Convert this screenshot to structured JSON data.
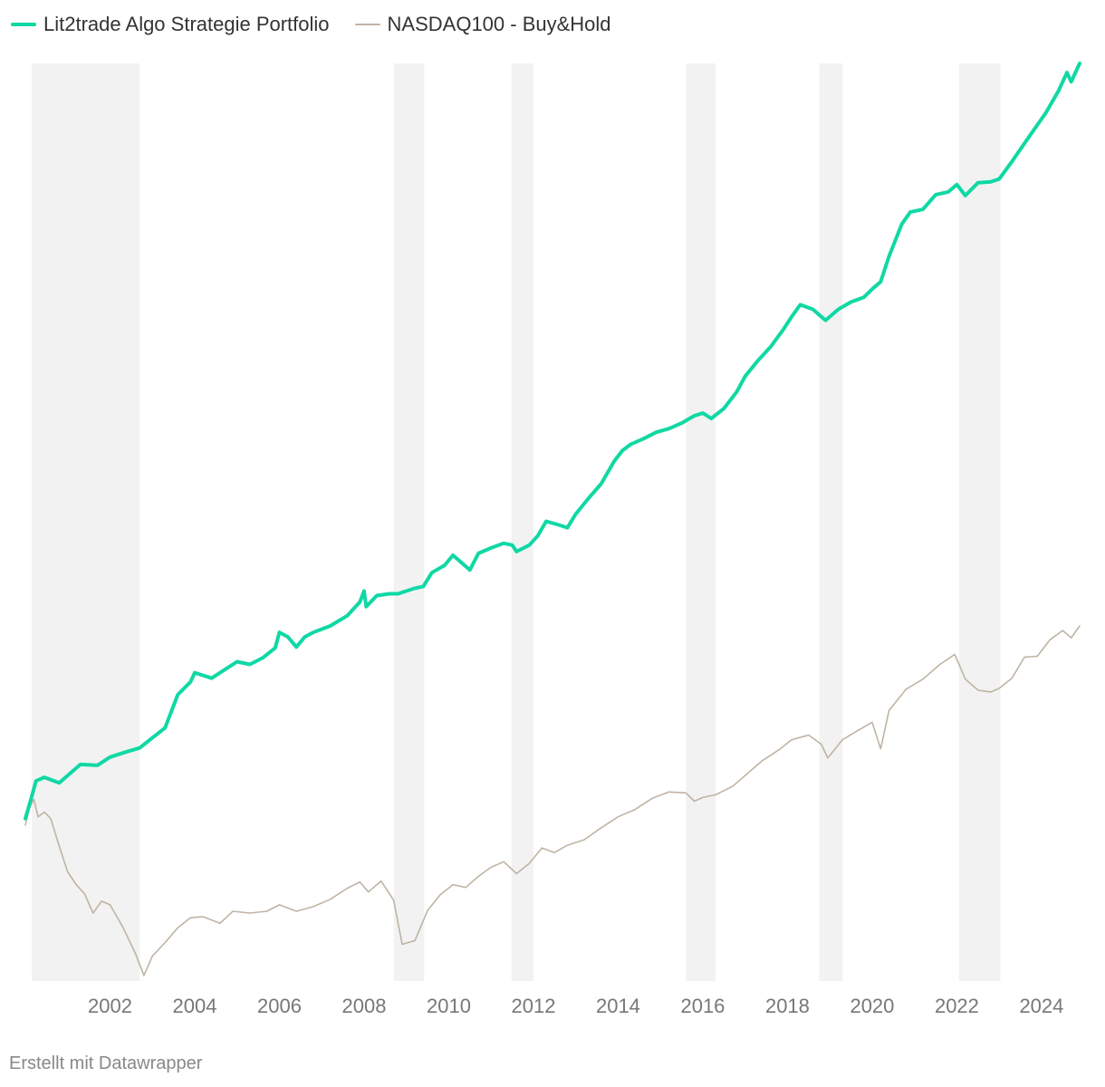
{
  "chart_data": {
    "type": "line",
    "title": "",
    "xlabel": "",
    "ylabel": "",
    "xlim": [
      2000.0,
      2024.9
    ],
    "ylim": [
      0,
      100
    ],
    "y_axis_shown": false,
    "legend_position": "top-left",
    "x_ticks": [
      2002,
      2004,
      2006,
      2008,
      2010,
      2012,
      2014,
      2016,
      2018,
      2020,
      2022,
      2024
    ],
    "x_tick_labels": [
      "2002",
      "2004",
      "2006",
      "2008",
      "2010",
      "2012",
      "2014",
      "2016",
      "2018",
      "2020",
      "2022",
      "2024"
    ],
    "shaded_periods": [
      {
        "start": 2000.15,
        "end": 2002.7
      },
      {
        "start": 2008.7,
        "end": 2009.42
      },
      {
        "start": 2011.48,
        "end": 2012.0
      },
      {
        "start": 2015.6,
        "end": 2016.3
      },
      {
        "start": 2018.75,
        "end": 2019.3
      },
      {
        "start": 2022.05,
        "end": 2023.03
      }
    ],
    "series": [
      {
        "name": "Lit2trade Algo Strategie Portfolio",
        "color": "#10d8a4",
        "points": [
          [
            2000.0,
            17.7
          ],
          [
            2000.15,
            20.1
          ],
          [
            2000.25,
            21.8
          ],
          [
            2000.45,
            22.2
          ],
          [
            2000.8,
            21.6
          ],
          [
            2001.0,
            22.4
          ],
          [
            2001.3,
            23.6
          ],
          [
            2001.7,
            23.5
          ],
          [
            2002.0,
            24.4
          ],
          [
            2002.4,
            25.0
          ],
          [
            2002.7,
            25.4
          ],
          [
            2003.0,
            26.5
          ],
          [
            2003.3,
            27.6
          ],
          [
            2003.6,
            31.2
          ],
          [
            2003.9,
            32.6
          ],
          [
            2004.0,
            33.6
          ],
          [
            2004.4,
            33.0
          ],
          [
            2004.7,
            33.9
          ],
          [
            2005.0,
            34.8
          ],
          [
            2005.3,
            34.5
          ],
          [
            2005.6,
            35.2
          ],
          [
            2005.9,
            36.3
          ],
          [
            2006.0,
            38.0
          ],
          [
            2006.2,
            37.5
          ],
          [
            2006.4,
            36.4
          ],
          [
            2006.6,
            37.5
          ],
          [
            2006.8,
            38.0
          ],
          [
            2007.2,
            38.7
          ],
          [
            2007.6,
            39.8
          ],
          [
            2007.9,
            41.3
          ],
          [
            2008.0,
            42.5
          ],
          [
            2008.05,
            40.8
          ],
          [
            2008.3,
            42.0
          ],
          [
            2008.6,
            42.2
          ],
          [
            2008.8,
            42.2
          ],
          [
            2009.2,
            42.8
          ],
          [
            2009.4,
            43.0
          ],
          [
            2009.6,
            44.5
          ],
          [
            2009.9,
            45.3
          ],
          [
            2010.1,
            46.4
          ],
          [
            2010.3,
            45.6
          ],
          [
            2010.5,
            44.8
          ],
          [
            2010.7,
            46.6
          ],
          [
            2011.0,
            47.2
          ],
          [
            2011.3,
            47.7
          ],
          [
            2011.5,
            47.5
          ],
          [
            2011.6,
            46.8
          ],
          [
            2011.9,
            47.5
          ],
          [
            2012.1,
            48.5
          ],
          [
            2012.3,
            50.1
          ],
          [
            2012.6,
            49.7
          ],
          [
            2012.8,
            49.4
          ],
          [
            2013.0,
            50.9
          ],
          [
            2013.3,
            52.6
          ],
          [
            2013.6,
            54.2
          ],
          [
            2013.9,
            56.6
          ],
          [
            2014.1,
            57.8
          ],
          [
            2014.3,
            58.5
          ],
          [
            2014.6,
            59.1
          ],
          [
            2014.9,
            59.8
          ],
          [
            2015.2,
            60.2
          ],
          [
            2015.5,
            60.8
          ],
          [
            2015.8,
            61.6
          ],
          [
            2016.0,
            61.9
          ],
          [
            2016.2,
            61.3
          ],
          [
            2016.5,
            62.4
          ],
          [
            2016.8,
            64.2
          ],
          [
            2017.0,
            65.9
          ],
          [
            2017.3,
            67.6
          ],
          [
            2017.6,
            69.1
          ],
          [
            2017.9,
            71.0
          ],
          [
            2018.1,
            72.4
          ],
          [
            2018.3,
            73.7
          ],
          [
            2018.6,
            73.2
          ],
          [
            2018.75,
            72.6
          ],
          [
            2018.9,
            72.0
          ],
          [
            2019.2,
            73.2
          ],
          [
            2019.5,
            74.0
          ],
          [
            2019.8,
            74.5
          ],
          [
            2020.0,
            75.4
          ],
          [
            2020.2,
            76.2
          ],
          [
            2020.4,
            79.0
          ],
          [
            2020.7,
            82.5
          ],
          [
            2020.9,
            83.8
          ],
          [
            2021.2,
            84.1
          ],
          [
            2021.5,
            85.7
          ],
          [
            2021.8,
            86.0
          ],
          [
            2022.0,
            86.8
          ],
          [
            2022.2,
            85.6
          ],
          [
            2022.5,
            87.0
          ],
          [
            2022.8,
            87.1
          ],
          [
            2023.0,
            87.4
          ],
          [
            2023.3,
            89.3
          ],
          [
            2023.6,
            91.3
          ],
          [
            2023.9,
            93.3
          ],
          [
            2024.1,
            94.6
          ],
          [
            2024.4,
            97.0
          ],
          [
            2024.6,
            99.0
          ],
          [
            2024.7,
            98.0
          ],
          [
            2024.9,
            100.0
          ]
        ]
      },
      {
        "name": "NASDAQ100 - Buy&Hold",
        "color": "#bfb4a4",
        "points": [
          [
            2000.0,
            17.0
          ],
          [
            2000.1,
            18.9
          ],
          [
            2000.2,
            19.8
          ],
          [
            2000.3,
            17.9
          ],
          [
            2000.45,
            18.4
          ],
          [
            2000.6,
            17.7
          ],
          [
            2000.8,
            14.7
          ],
          [
            2001.0,
            11.9
          ],
          [
            2001.2,
            10.5
          ],
          [
            2001.4,
            9.5
          ],
          [
            2001.6,
            7.4
          ],
          [
            2001.8,
            8.7
          ],
          [
            2002.0,
            8.3
          ],
          [
            2002.3,
            5.9
          ],
          [
            2002.6,
            3.0
          ],
          [
            2002.8,
            0.6
          ],
          [
            2003.0,
            2.7
          ],
          [
            2003.3,
            4.2
          ],
          [
            2003.6,
            5.8
          ],
          [
            2003.9,
            6.9
          ],
          [
            2004.2,
            7.0
          ],
          [
            2004.6,
            6.3
          ],
          [
            2004.9,
            7.6
          ],
          [
            2005.3,
            7.4
          ],
          [
            2005.7,
            7.6
          ],
          [
            2006.0,
            8.3
          ],
          [
            2006.4,
            7.6
          ],
          [
            2006.8,
            8.1
          ],
          [
            2007.2,
            8.9
          ],
          [
            2007.6,
            10.1
          ],
          [
            2007.9,
            10.8
          ],
          [
            2008.1,
            9.7
          ],
          [
            2008.4,
            10.9
          ],
          [
            2008.7,
            8.8
          ],
          [
            2008.9,
            4.0
          ],
          [
            2009.2,
            4.4
          ],
          [
            2009.5,
            7.7
          ],
          [
            2009.8,
            9.4
          ],
          [
            2010.1,
            10.5
          ],
          [
            2010.4,
            10.2
          ],
          [
            2010.7,
            11.4
          ],
          [
            2011.0,
            12.4
          ],
          [
            2011.3,
            13.0
          ],
          [
            2011.6,
            11.7
          ],
          [
            2011.9,
            12.8
          ],
          [
            2012.2,
            14.5
          ],
          [
            2012.5,
            14.0
          ],
          [
            2012.8,
            14.8
          ],
          [
            2013.2,
            15.4
          ],
          [
            2013.6,
            16.7
          ],
          [
            2014.0,
            17.9
          ],
          [
            2014.4,
            18.7
          ],
          [
            2014.8,
            19.9
          ],
          [
            2015.2,
            20.6
          ],
          [
            2015.6,
            20.5
          ],
          [
            2015.8,
            19.6
          ],
          [
            2016.0,
            20.0
          ],
          [
            2016.3,
            20.3
          ],
          [
            2016.7,
            21.2
          ],
          [
            2017.0,
            22.4
          ],
          [
            2017.4,
            24.0
          ],
          [
            2017.8,
            25.2
          ],
          [
            2018.1,
            26.3
          ],
          [
            2018.5,
            26.8
          ],
          [
            2018.8,
            25.8
          ],
          [
            2018.95,
            24.3
          ],
          [
            2019.3,
            26.3
          ],
          [
            2019.7,
            27.4
          ],
          [
            2020.0,
            28.2
          ],
          [
            2020.2,
            25.3
          ],
          [
            2020.4,
            29.5
          ],
          [
            2020.8,
            31.8
          ],
          [
            2021.2,
            32.9
          ],
          [
            2021.6,
            34.5
          ],
          [
            2021.95,
            35.6
          ],
          [
            2022.2,
            32.9
          ],
          [
            2022.5,
            31.7
          ],
          [
            2022.8,
            31.5
          ],
          [
            2023.0,
            31.9
          ],
          [
            2023.3,
            33.0
          ],
          [
            2023.6,
            35.3
          ],
          [
            2023.9,
            35.4
          ],
          [
            2024.2,
            37.2
          ],
          [
            2024.5,
            38.2
          ],
          [
            2024.7,
            37.4
          ],
          [
            2024.9,
            38.7
          ]
        ]
      }
    ]
  },
  "footer": {
    "credit": "Erstellt mit Datawrapper"
  }
}
